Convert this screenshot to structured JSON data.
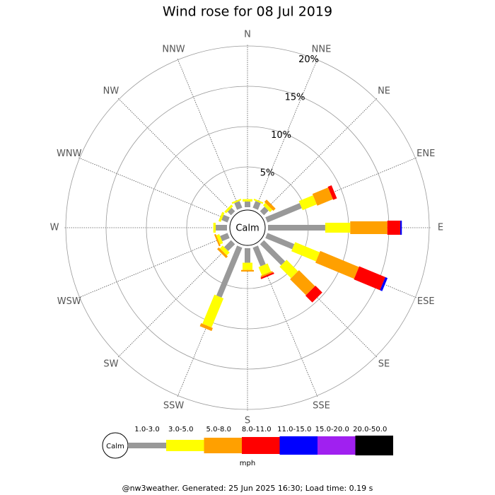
{
  "chart_data": {
    "type": "rose",
    "title": "Wind rose for 08 Jul 2019",
    "directions": [
      "N",
      "NNE",
      "NE",
      "ENE",
      "E",
      "ESE",
      "SE",
      "SSE",
      "S",
      "SSW",
      "SW",
      "WSW",
      "W",
      "WNW",
      "NW",
      "NNW"
    ],
    "series": [
      {
        "name": "1.0-3.0",
        "color": "#999999",
        "values": [
          0.7,
          0.9,
          0.8,
          4.6,
          7.1,
          3.6,
          3.7,
          2.5,
          1.8,
          6.7,
          1.2,
          1.0,
          1.4,
          0.8,
          0.6,
          0.9
        ]
      },
      {
        "name": "3.0-5.0",
        "color": "#ffff00",
        "values": [
          0.3,
          0.2,
          0.4,
          1.9,
          3.1,
          3.3,
          2.0,
          1.1,
          0.9,
          3.9,
          0.5,
          0.4,
          0.3,
          0.3,
          0.3,
          0.2
        ]
      },
      {
        "name": "5.0-8.0",
        "color": "#ffa000",
        "values": [
          0,
          0,
          0.4,
          2.1,
          4.6,
          5.2,
          2.8,
          0.2,
          0.2,
          0.4,
          0.3,
          0.2,
          0,
          0,
          0,
          0
        ]
      },
      {
        "name": "8.0-11.0",
        "color": "#ff0000",
        "values": [
          0,
          0,
          0,
          0.5,
          1.6,
          3.5,
          1.2,
          0.2,
          0,
          0,
          0,
          0,
          0,
          0,
          0,
          0
        ]
      },
      {
        "name": "11.0-15.0",
        "color": "#0000ff",
        "values": [
          0,
          0,
          0,
          0,
          0.2,
          0.3,
          0,
          0,
          0,
          0,
          0,
          0,
          0,
          0,
          0,
          0
        ]
      },
      {
        "name": "15.0-20.0",
        "color": "#a020f0",
        "values": [
          0,
          0,
          0,
          0,
          0,
          0,
          0,
          0,
          0,
          0,
          0,
          0,
          0,
          0,
          0,
          0
        ]
      },
      {
        "name": "20.0-50.0",
        "color": "#000000",
        "values": [
          0,
          0,
          0,
          0,
          0,
          0,
          0,
          0,
          0,
          0,
          0,
          0,
          0,
          0,
          0,
          0
        ]
      }
    ],
    "ylim": [
      0,
      20
    ],
    "yticks": [
      {
        "value": 5,
        "label": "5%"
      },
      {
        "value": 10,
        "label": "10%"
      },
      {
        "value": 15,
        "label": "15%"
      },
      {
        "value": 20,
        "label": "20%"
      }
    ],
    "calm_label": "Calm",
    "legend_title": "mph"
  },
  "footer": "@nw3weather. Generated: 25 Jun 2025 16:30; Load time: 0.19 s"
}
